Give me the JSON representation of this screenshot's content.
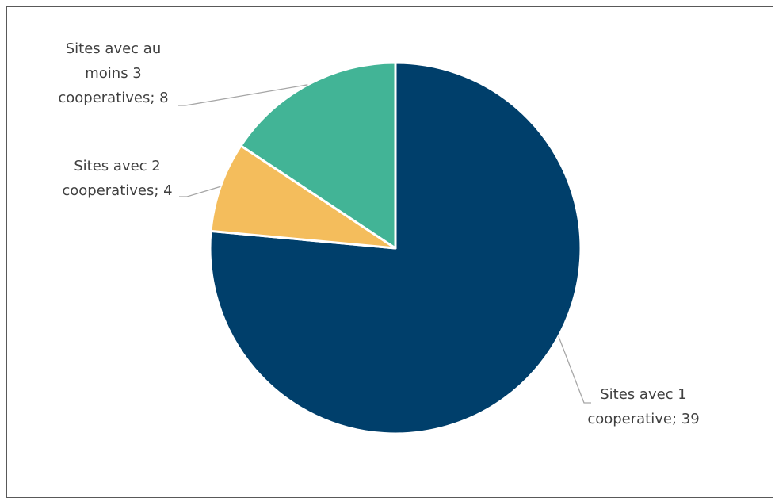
{
  "chart_data": {
    "type": "pie",
    "title": "",
    "slices": [
      {
        "label_lines": [
          "Sites avec  1",
          "cooperative; 39"
        ],
        "category": "Sites avec  1 cooperative",
        "value": 39,
        "color": "#003f6b"
      },
      {
        "label_lines": [
          "Sites avec  2",
          "cooperatives; 4"
        ],
        "category": "Sites avec  2 cooperatives",
        "value": 4,
        "color": "#f4bd5c"
      },
      {
        "label_lines": [
          "Sites avec  au",
          "moins 3",
          "cooperatives; 8"
        ],
        "category": "Sites avec  au moins 3 cooperatives",
        "value": 8,
        "color": "#42b496"
      }
    ],
    "start_angle_deg": 0,
    "direction": "clockwise",
    "slice_border_color": "#ffffff",
    "leader_line_color": "#a6a6a6",
    "legend": "none"
  }
}
